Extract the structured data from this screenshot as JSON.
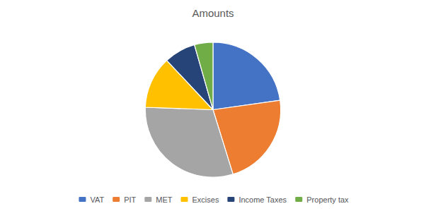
{
  "chart_data": {
    "type": "pie",
    "title": "Amounts",
    "categories": [
      "VAT",
      "PIT",
      "MET",
      "Excises",
      "Income Taxes",
      "Property tax"
    ],
    "values": [
      351.3,
      346.7,
      468.4,
      192.2,
      116.3,
      68.3
    ],
    "colors": [
      "#4472C4",
      "#ED7D31",
      "#A5A5A5",
      "#FFC000",
      "#264478",
      "#70AD47"
    ],
    "legend": "bottom"
  }
}
